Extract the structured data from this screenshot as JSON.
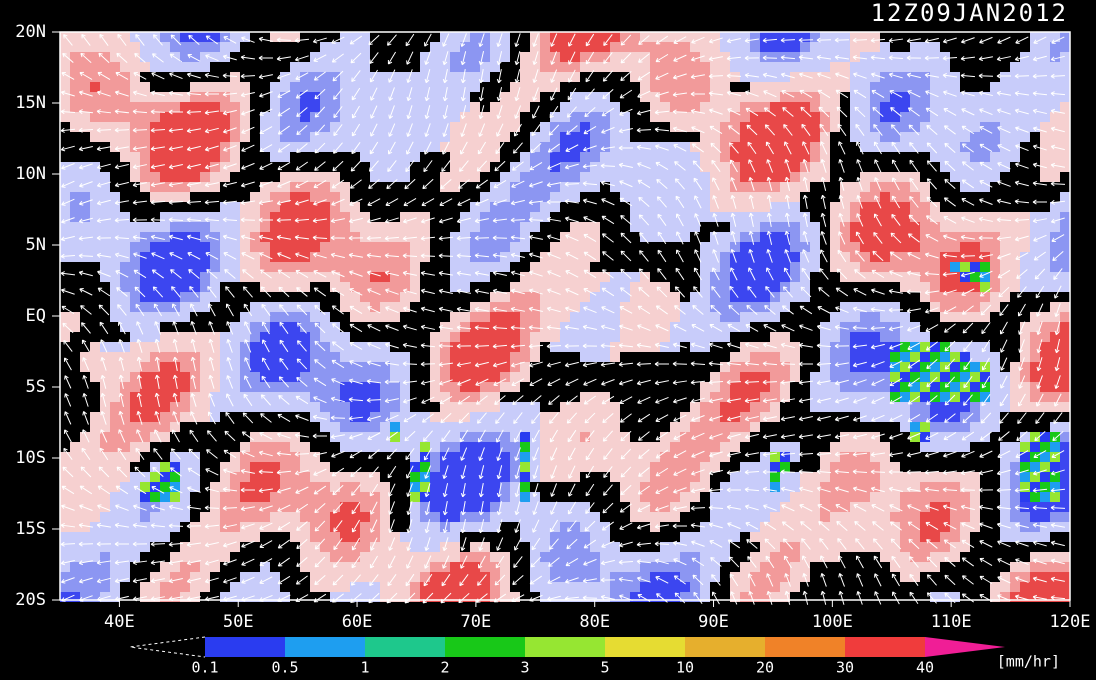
{
  "title": "12Z09JAN2012",
  "lat_labels": [
    "20N",
    "15N",
    "10N",
    "5N",
    "EQ",
    "5S",
    "10S",
    "15S",
    "20S"
  ],
  "lon_labels": [
    "40E",
    "50E",
    "60E",
    "70E",
    "80E",
    "90E",
    "100E",
    "110E",
    "120E"
  ],
  "colorbar": {
    "labels": [
      "0.1",
      "0.5",
      "1",
      "2",
      "3",
      "5",
      "10",
      "20",
      "30",
      "40"
    ],
    "colors": [
      "#2a3cf0",
      "#1e9ef0",
      "#1ec88c",
      "#18c818",
      "#96e632",
      "#e6dc32",
      "#e6af2d",
      "#f08228",
      "#f03c3c",
      "#f01e96"
    ],
    "unit": "[mm/hr]"
  }
}
